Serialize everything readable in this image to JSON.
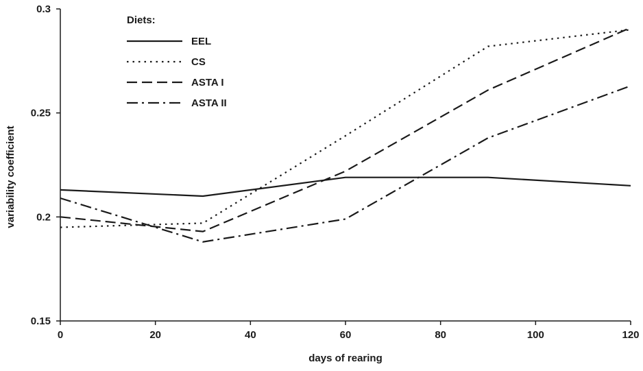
{
  "chart_data": {
    "type": "line",
    "xlabel": "days of rearing",
    "ylabel": "variability coefficient",
    "xlim": [
      0,
      120
    ],
    "ylim": [
      0.15,
      0.3
    ],
    "xticks": [
      0,
      20,
      40,
      60,
      80,
      100,
      120
    ],
    "xtick_labels": [
      "0",
      "20",
      "40",
      "60",
      "80",
      "100",
      "120"
    ],
    "yticks": [
      0.15,
      0.2,
      0.25,
      0.3
    ],
    "ytick_labels": [
      "0.15",
      "0.2",
      "0.25",
      "0.3"
    ],
    "grid": false,
    "legend": {
      "title": "Diets:",
      "placement": "top-left"
    },
    "x": [
      0,
      30,
      60,
      90,
      120
    ],
    "series": [
      {
        "name": "EEL",
        "style": "solid",
        "values": [
          0.213,
          0.21,
          0.219,
          0.219,
          0.215
        ]
      },
      {
        "name": "CS",
        "style": "dotted",
        "values": [
          0.195,
          0.197,
          0.239,
          0.282,
          0.29
        ]
      },
      {
        "name": "ASTA I",
        "style": "dashed",
        "values": [
          0.2,
          0.193,
          0.222,
          0.261,
          0.291
        ]
      },
      {
        "name": "ASTA II",
        "style": "dashdot",
        "values": [
          0.209,
          0.188,
          0.199,
          0.238,
          0.263
        ]
      }
    ]
  }
}
